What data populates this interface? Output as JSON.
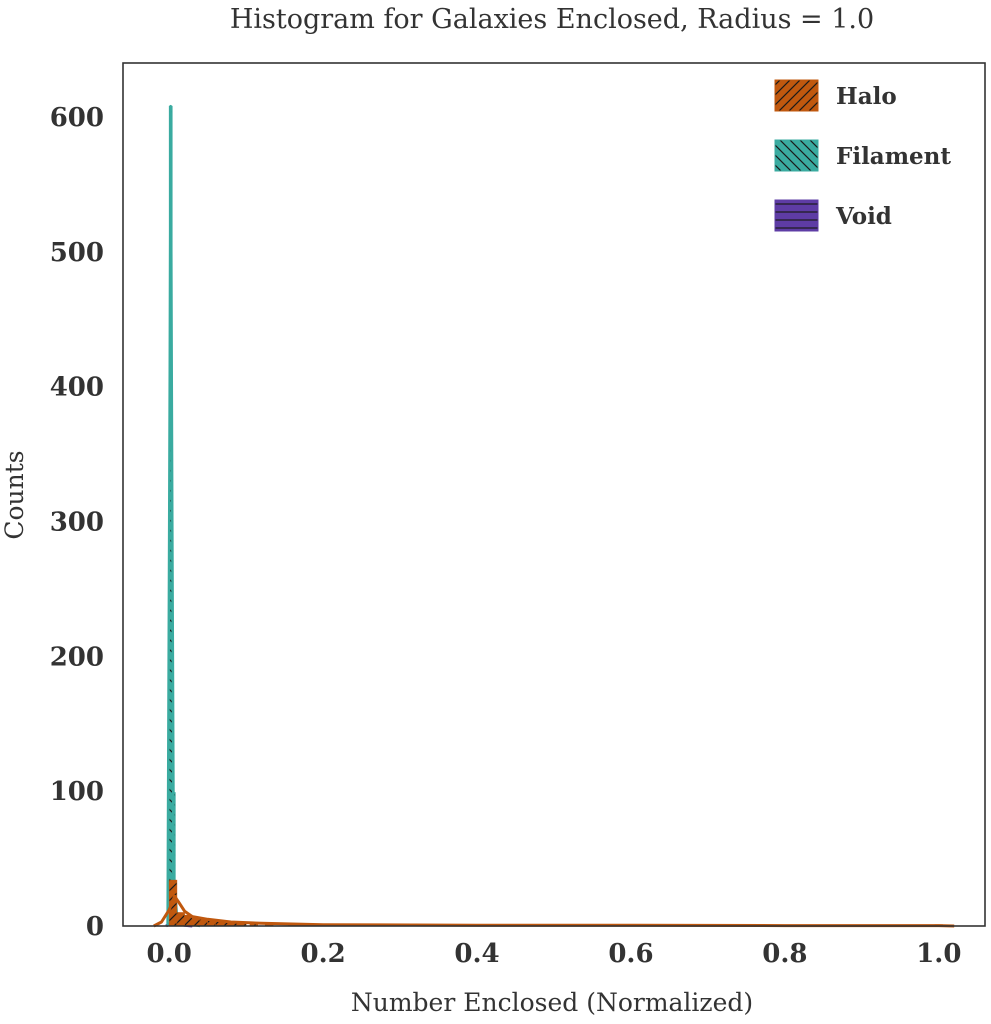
{
  "chart_data": {
    "type": "bar",
    "title": "Histogram for Galaxies Enclosed, Radius = 1.0",
    "xlabel": "Number Enclosed (Normalized)",
    "ylabel": "Counts",
    "xlim": [
      -0.06,
      1.06
    ],
    "ylim": [
      0,
      640
    ],
    "xticks": [
      "0.0",
      "0.2",
      "0.4",
      "0.6",
      "0.8",
      "1.0"
    ],
    "xtick_values": [
      0.0,
      0.2,
      0.4,
      0.6,
      0.8,
      1.0
    ],
    "yticks": [
      "0",
      "100",
      "200",
      "300",
      "400",
      "500",
      "600"
    ],
    "ytick_values": [
      0,
      100,
      200,
      300,
      400,
      500,
      600
    ],
    "grid": false,
    "legend_position": "top-right",
    "series": [
      {
        "name": "Halo",
        "color": "#c0580e",
        "hatch": "forward-diagonal",
        "bin_width": 0.01,
        "bins": [
          {
            "x": 0.005,
            "count": 34
          },
          {
            "x": 0.015,
            "count": 10
          },
          {
            "x": 0.025,
            "count": 8
          },
          {
            "x": 0.035,
            "count": 6
          },
          {
            "x": 0.045,
            "count": 5
          },
          {
            "x": 0.055,
            "count": 4
          },
          {
            "x": 0.065,
            "count": 4
          },
          {
            "x": 0.075,
            "count": 3
          },
          {
            "x": 0.085,
            "count": 3
          },
          {
            "x": 0.095,
            "count": 2
          },
          {
            "x": 0.11,
            "count": 2
          },
          {
            "x": 0.13,
            "count": 2
          },
          {
            "x": 0.16,
            "count": 1
          },
          {
            "x": 0.2,
            "count": 1
          },
          {
            "x": 0.33,
            "count": 1
          },
          {
            "x": 0.55,
            "count": 1
          },
          {
            "x": 0.7,
            "count": 1
          },
          {
            "x": 1.0,
            "count": 1
          }
        ],
        "kde": [
          [
            -0.02,
            0
          ],
          [
            -0.01,
            3
          ],
          [
            0.0,
            12
          ],
          [
            0.007,
            22
          ],
          [
            0.012,
            18
          ],
          [
            0.02,
            11
          ],
          [
            0.03,
            7
          ],
          [
            0.05,
            5
          ],
          [
            0.08,
            3
          ],
          [
            0.12,
            2
          ],
          [
            0.2,
            1
          ],
          [
            0.4,
            0.5
          ],
          [
            0.6,
            0.5
          ],
          [
            0.8,
            0.3
          ],
          [
            1.0,
            0.3
          ],
          [
            1.02,
            0
          ]
        ]
      },
      {
        "name": "Filament",
        "color": "#3aaba0",
        "hatch": "back-diagonal",
        "bin_width": 0.004,
        "bins": [
          {
            "x": 0.002,
            "count": 608
          },
          {
            "x": 0.006,
            "count": 99
          },
          {
            "x": 0.01,
            "count": 8
          },
          {
            "x": 0.018,
            "count": 2
          },
          {
            "x": 0.03,
            "count": 1
          }
        ],
        "kde": [
          [
            -0.002,
            0
          ],
          [
            0.0,
            300
          ],
          [
            0.002,
            608
          ],
          [
            0.004,
            300
          ],
          [
            0.006,
            40
          ],
          [
            0.01,
            8
          ],
          [
            0.02,
            2
          ],
          [
            0.04,
            0
          ]
        ]
      },
      {
        "name": "Void",
        "color": "#5e3ca5",
        "hatch": "horizontal",
        "bin_width": 0.004,
        "bins": [
          {
            "x": 0.004,
            "count": 3
          },
          {
            "x": 0.008,
            "count": 2
          },
          {
            "x": 0.016,
            "count": 1
          }
        ],
        "kde": [
          [
            -0.004,
            0
          ],
          [
            0.004,
            3
          ],
          [
            0.01,
            2
          ],
          [
            0.02,
            0.5
          ],
          [
            0.03,
            0
          ]
        ]
      }
    ]
  }
}
